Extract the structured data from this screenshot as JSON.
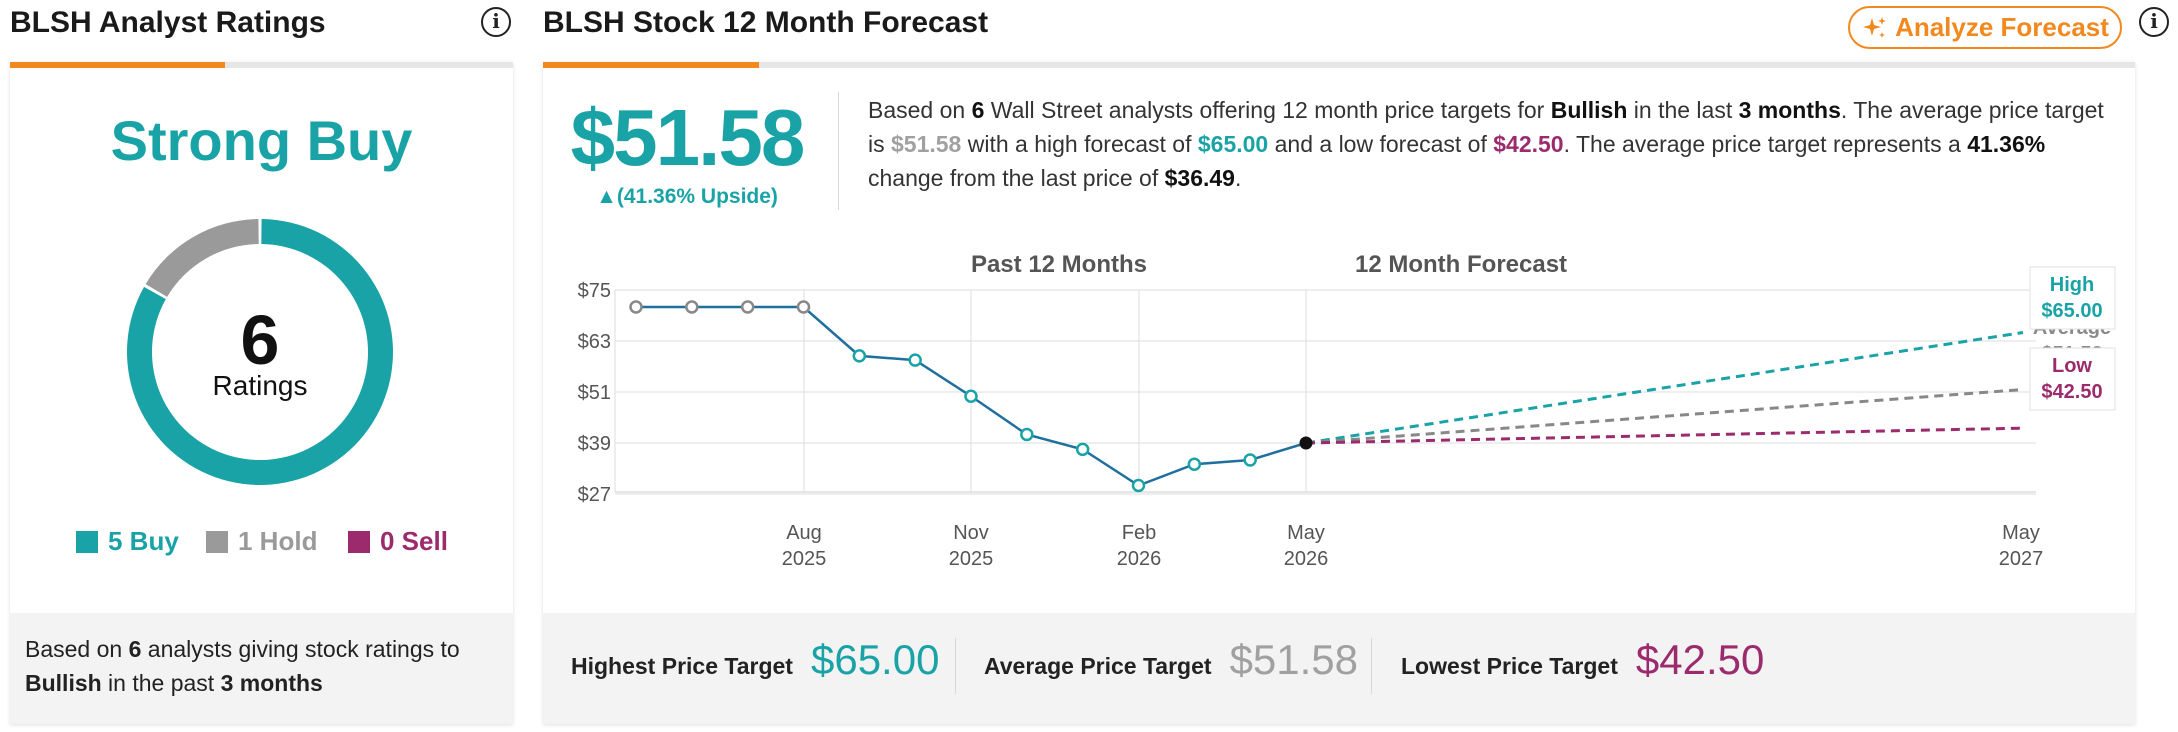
{
  "left": {
    "title": "BLSH Analyst Ratings",
    "info_icon": "i",
    "consensus": "Strong Buy",
    "total_ratings": "6",
    "ratings_label": "Ratings",
    "breakdown": {
      "buy": 5,
      "hold": 1,
      "sell": 0
    },
    "legend": {
      "buy": "5 Buy",
      "hold": "1 Hold",
      "sell": "0 Sell"
    },
    "footer": {
      "p1": "Based on ",
      "analysts": "6",
      "p2": " analysts giving stock ratings to",
      "company": "Bullish",
      "p3": "  in the past ",
      "period": "3 months"
    }
  },
  "right": {
    "title": "BLSH Stock 12 Month Forecast",
    "analyze_button": "Analyze Forecast",
    "info_icon": "i",
    "avg_price": "$51.58",
    "upside": "▲(41.36% Upside)",
    "summary": {
      "s1": "Based on ",
      "analysts": "6",
      "s2": " Wall Street analysts offering 12 month price targets for ",
      "company": "Bullish",
      "s3": " in the last ",
      "period": "3 months",
      "s4": ". The average price target is ",
      "avg": "$51.58",
      "s5": " with a high forecast of ",
      "high": "$65.00",
      "s6": " and a low forecast of ",
      "low": "$42.50",
      "s7": ". The average price target represents a ",
      "change": "41.36%",
      "s8": " change from the last price of ",
      "last": "$36.49",
      "s9": "."
    },
    "price_targets": {
      "highest_label": "Highest Price Target",
      "highest_value": "$65.00",
      "average_label": "Average Price Target",
      "average_value": "$51.58",
      "lowest_label": "Lowest Price Target",
      "lowest_value": "$42.50"
    }
  },
  "colors": {
    "teal": "#1aa3a6",
    "gray": "#9a9a9a",
    "plum": "#9c2b6d",
    "orange": "#f2891e",
    "line": "#1f6f9f"
  },
  "chart_data": {
    "type": "line",
    "header_left": "Past 12 Months",
    "header_right": "12 Month Forecast",
    "y_ticks": [
      "$75",
      "$63",
      "$51",
      "$39",
      "$27"
    ],
    "ylim": [
      27,
      75
    ],
    "x_ticks": [
      {
        "m": "Aug",
        "y": "2025"
      },
      {
        "m": "Nov",
        "y": "2025"
      },
      {
        "m": "Feb",
        "y": "2026"
      },
      {
        "m": "May",
        "y": "2026"
      },
      {
        "m": "May",
        "y": "2027"
      }
    ],
    "history": [
      71,
      71,
      71,
      71,
      59.5,
      58.5,
      50,
      41,
      37.5,
      29,
      34,
      35,
      39
    ],
    "forecast": {
      "start": 39,
      "high": 65.0,
      "average": 51.58,
      "low": 42.5,
      "labels": {
        "high_name": "High",
        "high_value": "$65.00",
        "avg_name": "Average",
        "avg_value": "$51.58",
        "low_name": "Low",
        "low_value": "$42.50"
      }
    },
    "grid": true
  }
}
